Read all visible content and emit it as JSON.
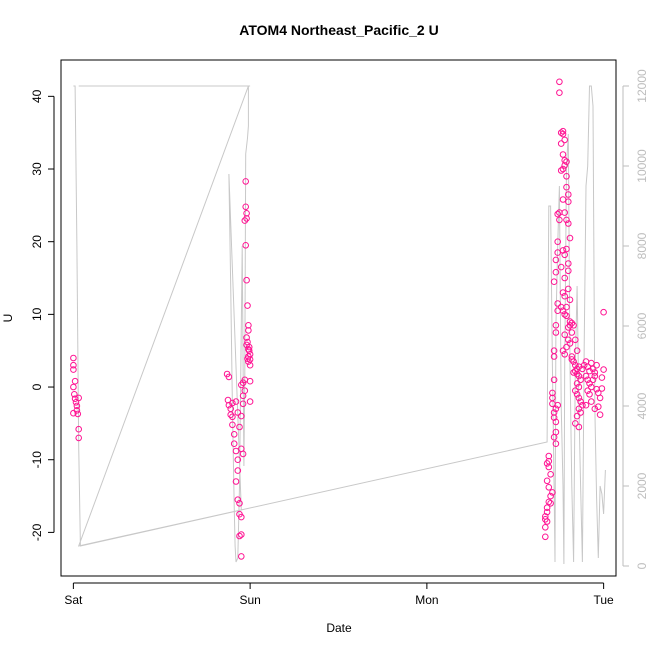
{
  "chart_data": {
    "type": "scatter",
    "title": "ATOM4 Northeast_Pacific_2 U",
    "xlabel": "Date",
    "ylabel": "U",
    "x_ticks": [
      "Sat",
      "Sun",
      "Mon",
      "Tue"
    ],
    "x_range_days": [
      -0.07,
      3.07
    ],
    "ylim": [
      -26,
      45
    ],
    "y_ticks": [
      -20,
      -10,
      0,
      10,
      20,
      30,
      40
    ],
    "y2lim": [
      -250,
      12650
    ],
    "y2_ticks": [
      0,
      2000,
      4000,
      6000,
      8000,
      10000,
      12000
    ],
    "y2_tick_labels": [
      "0",
      "2000",
      "4000",
      "6000",
      "8000",
      "10000",
      "12000"
    ],
    "colors": {
      "points": "#ff1493",
      "secondary_line": "#c8c8c8",
      "axis": "#000000",
      "right_axis": "#bdbdbd"
    },
    "series": [
      {
        "type": "scatter",
        "points": [
          [
            0.0,
            4.0
          ],
          [
            0.0,
            3.0
          ],
          [
            0.0,
            2.4
          ],
          [
            0.01,
            0.8
          ],
          [
            0.0,
            0.0
          ],
          [
            0.01,
            -1.6
          ],
          [
            0.015,
            -2.1
          ],
          [
            0.02,
            -2.6
          ],
          [
            0.0,
            -3.6
          ],
          [
            0.02,
            -3.2
          ],
          [
            0.03,
            -1.5
          ],
          [
            0.025,
            -3.7
          ],
          [
            0.03,
            -5.8
          ],
          [
            0.03,
            -7.0
          ],
          [
            0.005,
            -1.0
          ],
          [
            0.87,
            1.8
          ],
          [
            0.88,
            1.4
          ],
          [
            0.875,
            -1.8
          ],
          [
            0.88,
            -2.5
          ],
          [
            0.89,
            -3.0
          ],
          [
            0.9,
            -4.1
          ],
          [
            0.9,
            -5.2
          ],
          [
            0.91,
            -6.5
          ],
          [
            0.91,
            -7.8
          ],
          [
            0.92,
            -8.8
          ],
          [
            0.93,
            -10.0
          ],
          [
            0.93,
            -11.5
          ],
          [
            0.92,
            -13.0
          ],
          [
            0.93,
            -15.5
          ],
          [
            0.94,
            -16.0
          ],
          [
            0.94,
            -17.5
          ],
          [
            0.95,
            -17.9
          ],
          [
            0.94,
            -20.5
          ],
          [
            0.95,
            -20.3
          ],
          [
            0.95,
            -23.3
          ],
          [
            0.92,
            -2.0
          ],
          [
            0.93,
            -3.5
          ],
          [
            0.94,
            -5.5
          ],
          [
            0.95,
            -8.5
          ],
          [
            0.96,
            -9.2
          ],
          [
            0.9,
            -2.2
          ],
          [
            0.89,
            -3.8
          ],
          [
            0.95,
            -4.0
          ],
          [
            0.96,
            -1.2
          ],
          [
            0.96,
            0.6
          ],
          [
            0.95,
            0.3
          ],
          [
            0.97,
            1.0
          ],
          [
            0.97,
            -0.5
          ],
          [
            0.96,
            -2.3
          ],
          [
            0.975,
            28.3
          ],
          [
            0.975,
            24.8
          ],
          [
            0.98,
            23.2
          ],
          [
            0.97,
            22.9
          ],
          [
            0.98,
            23.9
          ],
          [
            0.975,
            19.5
          ],
          [
            0.98,
            14.7
          ],
          [
            0.985,
            11.2
          ],
          [
            0.99,
            8.5
          ],
          [
            0.99,
            7.8
          ],
          [
            0.985,
            6.2
          ],
          [
            0.98,
            5.8
          ],
          [
            0.995,
            5.5
          ],
          [
            0.995,
            5.0
          ],
          [
            1.0,
            4.5
          ],
          [
            0.99,
            4.2
          ],
          [
            1.0,
            3.0
          ],
          [
            1.0,
            3.8
          ],
          [
            0.99,
            3.5
          ],
          [
            1.0,
            0.8
          ],
          [
            1.0,
            -2.0
          ],
          [
            0.98,
            6.8
          ],
          [
            0.99,
            5.2
          ],
          [
            0.985,
            3.9
          ],
          [
            2.69,
            -9.5
          ],
          [
            2.69,
            -10.2
          ],
          [
            2.69,
            -11.0
          ],
          [
            2.68,
            -10.5
          ],
          [
            2.7,
            -12.0
          ],
          [
            2.68,
            -12.9
          ],
          [
            2.69,
            -13.8
          ],
          [
            2.7,
            -15.0
          ],
          [
            2.69,
            -15.8
          ],
          [
            2.68,
            -16.6
          ],
          [
            2.67,
            -17.8
          ],
          [
            2.67,
            -18.2
          ],
          [
            2.68,
            -18.5
          ],
          [
            2.67,
            -19.3
          ],
          [
            2.67,
            -20.6
          ],
          [
            2.68,
            -17.2
          ],
          [
            2.7,
            -16.0
          ],
          [
            2.71,
            -14.5
          ],
          [
            2.71,
            -1.5
          ],
          [
            2.71,
            -0.8
          ],
          [
            2.72,
            -3.5
          ],
          [
            2.73,
            -6.2
          ],
          [
            2.72,
            -6.9
          ],
          [
            2.73,
            -7.8
          ],
          [
            2.71,
            -2.3
          ],
          [
            2.72,
            -4.2
          ],
          [
            2.73,
            -4.8
          ],
          [
            2.72,
            5.0
          ],
          [
            2.72,
            4.2
          ],
          [
            2.73,
            7.5
          ],
          [
            2.73,
            8.5
          ],
          [
            2.74,
            10.5
          ],
          [
            2.74,
            11.5
          ],
          [
            2.72,
            14.5
          ],
          [
            2.73,
            15.8
          ],
          [
            2.73,
            17.5
          ],
          [
            2.74,
            18.5
          ],
          [
            2.74,
            20.0
          ],
          [
            2.75,
            23.0
          ],
          [
            2.74,
            23.8
          ],
          [
            2.75,
            24.0
          ],
          [
            2.73,
            -3.0
          ],
          [
            2.72,
            1.0
          ],
          [
            2.74,
            -2.5
          ],
          [
            2.75,
            42.0
          ],
          [
            2.75,
            40.5
          ],
          [
            2.76,
            35.0
          ],
          [
            2.77,
            35.2
          ],
          [
            2.77,
            34.8
          ],
          [
            2.78,
            34.0
          ],
          [
            2.76,
            33.5
          ],
          [
            2.77,
            32.0
          ],
          [
            2.78,
            31.2
          ],
          [
            2.79,
            31.0
          ],
          [
            2.78,
            30.5
          ],
          [
            2.79,
            29.0
          ],
          [
            2.76,
            29.8
          ],
          [
            2.77,
            30.0
          ],
          [
            2.79,
            27.5
          ],
          [
            2.8,
            26.5
          ],
          [
            2.8,
            25.5
          ],
          [
            2.77,
            25.8
          ],
          [
            2.78,
            24.0
          ],
          [
            2.79,
            23.0
          ],
          [
            2.8,
            22.5
          ],
          [
            2.81,
            20.5
          ],
          [
            2.79,
            19.0
          ],
          [
            2.77,
            18.8
          ],
          [
            2.78,
            18.2
          ],
          [
            2.8,
            17.0
          ],
          [
            2.8,
            16.0
          ],
          [
            2.76,
            16.5
          ],
          [
            2.78,
            15.0
          ],
          [
            2.77,
            13.0
          ],
          [
            2.78,
            12.5
          ],
          [
            2.8,
            13.5
          ],
          [
            2.81,
            12.0
          ],
          [
            2.79,
            11.0
          ],
          [
            2.76,
            11.0
          ],
          [
            2.77,
            10.5
          ],
          [
            2.78,
            10.0
          ],
          [
            2.79,
            9.8
          ],
          [
            2.81,
            9.0
          ],
          [
            2.82,
            8.8
          ],
          [
            2.81,
            8.5
          ],
          [
            2.8,
            8.2
          ],
          [
            2.83,
            8.5
          ],
          [
            2.82,
            7.5
          ],
          [
            2.78,
            7.2
          ],
          [
            2.8,
            6.5
          ],
          [
            2.81,
            6.0
          ],
          [
            2.79,
            5.5
          ],
          [
            2.77,
            5.0
          ],
          [
            2.78,
            4.5
          ],
          [
            2.82,
            4.2
          ],
          [
            2.83,
            3.5
          ],
          [
            2.84,
            3.0
          ],
          [
            2.85,
            2.5
          ],
          [
            2.86,
            2.8
          ],
          [
            2.84,
            2.2
          ],
          [
            2.85,
            1.8
          ],
          [
            2.86,
            1.5
          ],
          [
            2.87,
            1.0
          ],
          [
            2.85,
            0.5
          ],
          [
            2.86,
            0.0
          ],
          [
            2.84,
            -0.5
          ],
          [
            2.85,
            -1.0
          ],
          [
            2.86,
            -1.5
          ],
          [
            2.87,
            -2.0
          ],
          [
            2.88,
            -2.5
          ],
          [
            2.86,
            -3.0
          ],
          [
            2.87,
            -3.5
          ],
          [
            2.85,
            -4.0
          ],
          [
            2.84,
            -5.0
          ],
          [
            2.86,
            -5.5
          ],
          [
            2.85,
            5.0
          ],
          [
            2.84,
            6.5
          ],
          [
            2.83,
            2.0
          ],
          [
            2.82,
            3.8
          ],
          [
            2.88,
            2.5
          ],
          [
            2.89,
            3.0
          ],
          [
            2.9,
            3.5
          ],
          [
            2.91,
            2.8
          ],
          [
            2.92,
            2.2
          ],
          [
            2.9,
            1.5
          ],
          [
            2.91,
            1.0
          ],
          [
            2.92,
            0.5
          ],
          [
            2.93,
            0.0
          ],
          [
            2.91,
            -0.5
          ],
          [
            2.92,
            -1.0
          ],
          [
            2.9,
            -2.5
          ],
          [
            2.93,
            -2.0
          ],
          [
            2.94,
            2.5
          ],
          [
            2.95,
            2.0
          ],
          [
            2.96,
            3.0
          ],
          [
            2.95,
            1.5
          ],
          [
            2.94,
            1.0
          ],
          [
            2.96,
            -0.3
          ],
          [
            2.97,
            -0.8
          ],
          [
            2.98,
            -1.5
          ],
          [
            2.97,
            -2.7
          ],
          [
            2.98,
            -3.8
          ],
          [
            2.99,
            -0.2
          ],
          [
            2.99,
            1.3
          ],
          [
            3.0,
            2.4
          ],
          [
            3.0,
            10.3
          ],
          [
            2.93,
            3.3
          ],
          [
            2.95,
            -3.0
          ]
        ]
      },
      {
        "type": "line",
        "axis": "right",
        "points": [
          [
            0.0,
            12000
          ],
          [
            0.01,
            12000
          ],
          [
            0.02,
            8000
          ],
          [
            0.03,
            3000
          ],
          [
            0.04,
            500
          ],
          [
            0.95,
            1400
          ],
          [
            0.88,
            9800
          ],
          [
            0.89,
            7000
          ],
          [
            0.9,
            4000
          ],
          [
            0.91,
            1500
          ],
          [
            0.915,
            500
          ],
          [
            0.92,
            100
          ],
          [
            0.93,
            200
          ],
          [
            0.94,
            2000
          ],
          [
            0.95,
            6000
          ],
          [
            0.955,
            8000
          ],
          [
            0.96,
            5000
          ],
          [
            0.965,
            2500
          ],
          [
            0.97,
            4800
          ],
          [
            0.975,
            10300
          ],
          [
            0.98,
            10500
          ],
          [
            0.985,
            10700
          ],
          [
            0.99,
            11000
          ],
          [
            0.99,
            12000
          ],
          [
            1.0,
            12000
          ],
          [
            0.03,
            12000
          ],
          [
            0.99,
            12000
          ],
          [
            0.03,
            500
          ],
          [
            2.68,
            3100
          ],
          [
            2.69,
            9000
          ],
          [
            2.7,
            9000
          ],
          [
            2.71,
            5000
          ],
          [
            2.72,
            2000
          ],
          [
            2.725,
            100
          ],
          [
            2.73,
            6000
          ],
          [
            2.74,
            8000
          ],
          [
            2.75,
            9500
          ],
          [
            2.76,
            4000
          ],
          [
            2.77,
            2000
          ],
          [
            2.775,
            50
          ],
          [
            2.78,
            5000
          ],
          [
            2.79,
            10000
          ],
          [
            2.8,
            10800
          ],
          [
            2.81,
            5000
          ],
          [
            2.82,
            2000
          ],
          [
            2.83,
            100
          ],
          [
            2.84,
            5000
          ],
          [
            2.85,
            7000
          ],
          [
            2.86,
            4000
          ],
          [
            2.87,
            2000
          ],
          [
            2.88,
            100
          ],
          [
            2.89,
            5500
          ],
          [
            2.9,
            9500
          ],
          [
            2.91,
            10000
          ],
          [
            2.92,
            12000
          ],
          [
            2.93,
            12000
          ],
          [
            2.94,
            11500
          ],
          [
            2.95,
            4000
          ],
          [
            2.96,
            1700
          ],
          [
            2.97,
            200
          ],
          [
            2.98,
            2000
          ],
          [
            2.99,
            1800
          ],
          [
            3.0,
            1300
          ],
          [
            3.01,
            2400
          ]
        ]
      }
    ]
  }
}
